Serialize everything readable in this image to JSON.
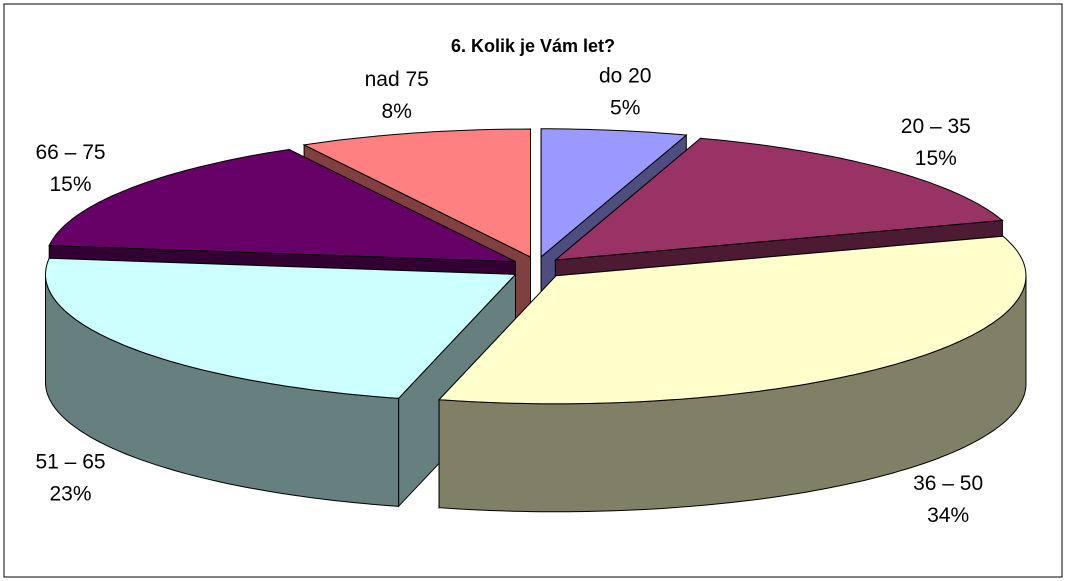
{
  "chart_data": {
    "type": "pie3d",
    "title": "6. Kolik je Vám let?",
    "categories": [
      "do 20",
      "20 – 35",
      "36 – 50",
      "51 – 65",
      "66 – 75",
      "nad 75"
    ],
    "values": [
      5,
      15,
      34,
      23,
      15,
      8
    ],
    "value_labels": [
      "5%",
      "15%",
      "34%",
      "23%",
      "15%",
      "8%"
    ],
    "colors": [
      "#9999ff",
      "#993366",
      "#ffffcc",
      "#ccffff",
      "#660066",
      "#ff8080"
    ],
    "exploded": true
  }
}
